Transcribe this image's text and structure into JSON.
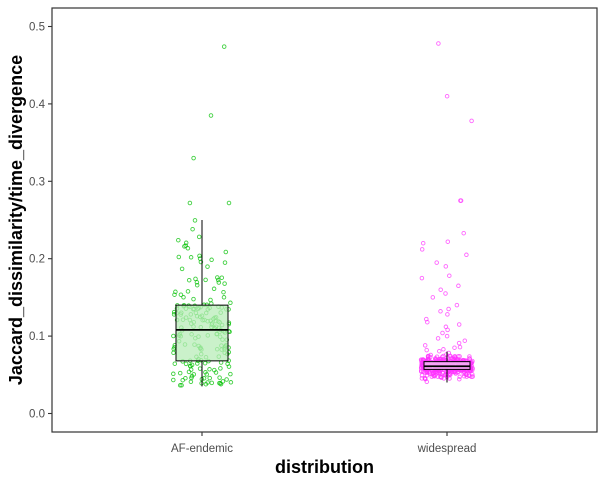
{
  "chart_data": {
    "type": "boxplot",
    "xlabel": "distribution",
    "ylabel": "Jaccard_dissimilarity/time_divergence",
    "ylim": [
      -0.025,
      0.525
    ],
    "yticks": [
      "0.0",
      "0.1",
      "0.2",
      "0.3",
      "0.4",
      "0.5"
    ],
    "ytick_values": [
      0.0,
      0.1,
      0.2,
      0.3,
      0.4,
      0.5
    ],
    "categories": [
      "AF-endemic",
      "widespread"
    ],
    "grid": false,
    "legend": "none",
    "series": [
      {
        "category": "AF-endemic",
        "color": "#00c000",
        "fill": "#b8ecb8",
        "box": {
          "whisker_low": 0.035,
          "q1": 0.068,
          "median": 0.108,
          "q3": 0.14,
          "whisker_high": 0.25
        },
        "outliers": [
          0.474,
          0.385,
          0.33,
          0.272,
          0.272
        ],
        "point_count": 200
      },
      {
        "category": "widespread",
        "color": "#ff33ff",
        "fill": "#f7c8f7",
        "box": {
          "whisker_low": 0.04,
          "q1": 0.057,
          "median": 0.061,
          "q3": 0.067,
          "whisker_high": 0.08
        },
        "outliers": [
          0.478,
          0.41,
          0.378,
          0.275,
          0.275,
          0.233,
          0.222,
          0.22,
          0.212,
          0.205,
          0.195,
          0.19,
          0.178,
          0.175,
          0.165,
          0.16,
          0.155,
          0.15,
          0.14,
          0.135,
          0.132,
          0.128,
          0.122,
          0.118,
          0.115,
          0.112,
          0.108,
          0.104,
          0.1,
          0.097,
          0.094,
          0.091,
          0.088,
          0.085,
          0.083
        ],
        "point_count": 420
      }
    ]
  }
}
